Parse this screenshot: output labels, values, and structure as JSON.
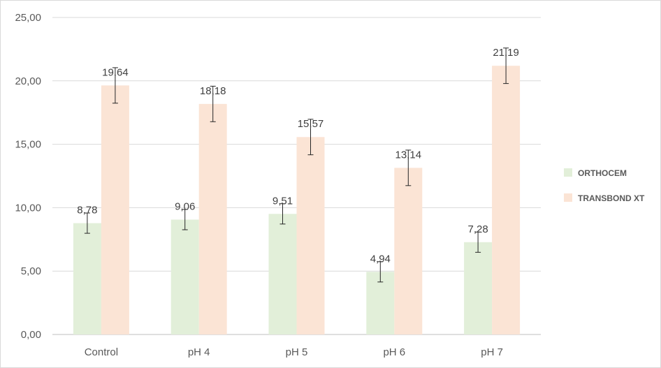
{
  "chart_data": {
    "type": "bar",
    "categories": [
      "Control",
      "pH 4",
      "pH 5",
      "pH 6",
      "pH 7"
    ],
    "series": [
      {
        "name": "ORTHOCEM",
        "color": "#e2efd9",
        "values": [
          8.78,
          9.06,
          9.51,
          4.94,
          7.28
        ],
        "labels": [
          "8,78",
          "9,06",
          "9,51",
          "4,94",
          "7,28"
        ],
        "error": [
          0.8,
          0.8,
          0.8,
          0.8,
          0.8
        ]
      },
      {
        "name": "TRANSBOND XT",
        "color": "#fbe4d5",
        "values": [
          19.64,
          18.18,
          15.57,
          13.14,
          21.19
        ],
        "labels": [
          "19,64",
          "18,18",
          "15,57",
          "13,14",
          "21,19"
        ],
        "error": [
          1.4,
          1.4,
          1.4,
          1.4,
          1.4
        ]
      }
    ],
    "ylim": [
      0,
      25
    ],
    "yticks": [
      0,
      5,
      10,
      15,
      20,
      25
    ],
    "ytick_labels": [
      "0,00",
      "5,00",
      "10,00",
      "15,00",
      "20,00",
      "25,00"
    ],
    "grid": true,
    "legend_position": "right",
    "title": "",
    "xlabel": "",
    "ylabel": ""
  }
}
